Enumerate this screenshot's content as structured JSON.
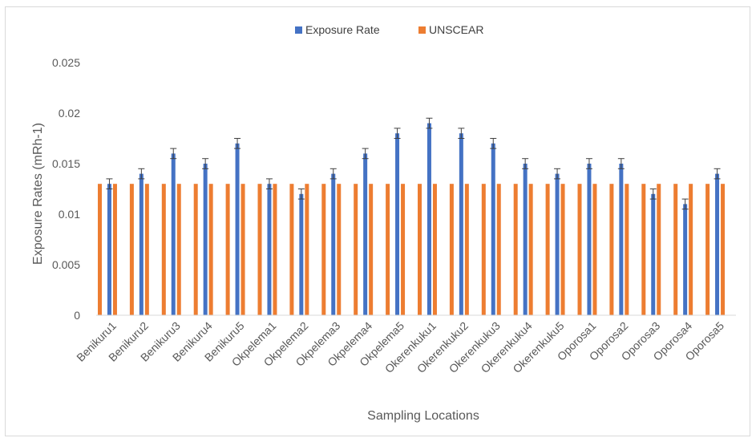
{
  "chart_data": {
    "type": "bar",
    "categories": [
      "Benikuru1",
      "Benikuru2",
      "Benikuru3",
      "Benikuru4",
      "Benikuru5",
      "Okpelema1",
      "Okpelema2",
      "Okpelema3",
      "Okpelema4",
      "Okpelema5",
      "Okerenkuku1",
      "Okerenkuku2",
      "Okerenkuku3",
      "Okerenkuku4",
      "Okerenkuku5",
      "Oporosa1",
      "Oporosa2",
      "Oporosa3",
      "Oporosa4",
      "Oporosa5"
    ],
    "series": [
      {
        "name": "Exposure Rate",
        "color": "#4472c4",
        "values": [
          0.013,
          0.014,
          0.016,
          0.015,
          0.017,
          0.013,
          0.012,
          0.014,
          0.016,
          0.018,
          0.019,
          0.018,
          0.017,
          0.015,
          0.014,
          0.015,
          0.015,
          0.012,
          0.011,
          0.014
        ],
        "error": 0.0005
      },
      {
        "name": "UNSCEAR",
        "color": "#ed7d31",
        "values": [
          0.013,
          0.013,
          0.013,
          0.013,
          0.013,
          0.013,
          0.013,
          0.013,
          0.013,
          0.013,
          0.013,
          0.013,
          0.013,
          0.013,
          0.013,
          0.013,
          0.013,
          0.013,
          0.013,
          0.013
        ]
      }
    ],
    "title": "",
    "xlabel": "Sampling Locations",
    "ylabel": "Exposure Rates (mRh-1)",
    "ylim": [
      0,
      0.025
    ],
    "yticks": [
      "0",
      "0.005",
      "0.01",
      "0.015",
      "0.02",
      "0.025"
    ],
    "grid": false,
    "legend_position": "top"
  }
}
